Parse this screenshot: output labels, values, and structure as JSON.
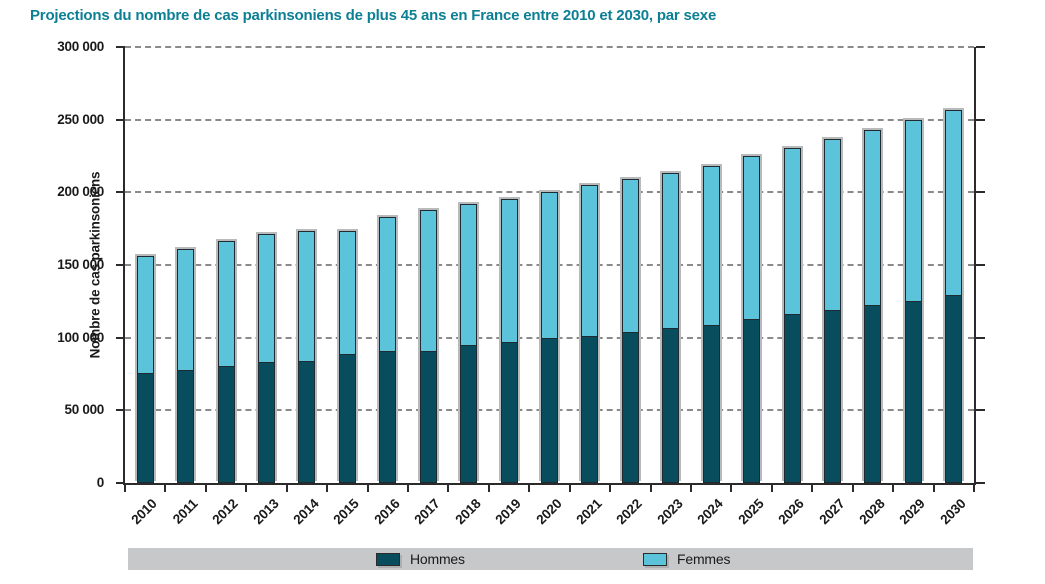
{
  "title": "Projections du nombre de cas parkinsoniens de plus 45 ans en France entre 2010 et 2030, par sexe",
  "chart_data": {
    "type": "bar",
    "stacked": true,
    "title": "Projections du nombre de cas parkinsoniens de plus 45 ans en France entre 2010 et 2030, par sexe",
    "xlabel": "",
    "ylabel": "Nombre de cas parkinsoniens",
    "ylim": [
      0,
      300000
    ],
    "ytick_step": 50000,
    "yticks": [
      0,
      50000,
      100000,
      150000,
      200000,
      250000,
      300000
    ],
    "ytick_labels": [
      "0",
      "50 000",
      "100 000",
      "150 000",
      "200 000",
      "250 000",
      "300 000"
    ],
    "grid": "horizontal-dashed",
    "legend_position": "bottom",
    "categories": [
      "2010",
      "2011",
      "2012",
      "2013",
      "2014",
      "2015",
      "2016",
      "2017",
      "2018",
      "2019",
      "2020",
      "2021",
      "2022",
      "2023",
      "2024",
      "2025",
      "2026",
      "2027",
      "2028",
      "2029",
      "2030"
    ],
    "series": [
      {
        "name": "Hommes",
        "color": "#084D5D",
        "values": [
          76000,
          78000,
          80500,
          83000,
          84000,
          88500,
          90500,
          91000,
          95000,
          97000,
          100000,
          101000,
          104000,
          106500,
          109000,
          112500,
          116500,
          119000,
          122500,
          125000,
          129500
        ]
      },
      {
        "name": "Femmes",
        "color": "#5BC4DB",
        "values": [
          80000,
          83000,
          86000,
          88000,
          89500,
          85000,
          92500,
          97000,
          97000,
          98500,
          100500,
          104000,
          105500,
          107000,
          109000,
          112500,
          114000,
          118000,
          120500,
          125000,
          127000
        ]
      }
    ]
  },
  "colors": {
    "title_text": "#0C7F95",
    "axis": "#2B2B2B",
    "gridline": "#8A8A8A",
    "bar_outline": "#1F2B30",
    "bar_shadow": "#B9BABC",
    "legend_band": "#C7C8C9",
    "text": "#1A1A1A",
    "background": "#FFFFFF"
  }
}
